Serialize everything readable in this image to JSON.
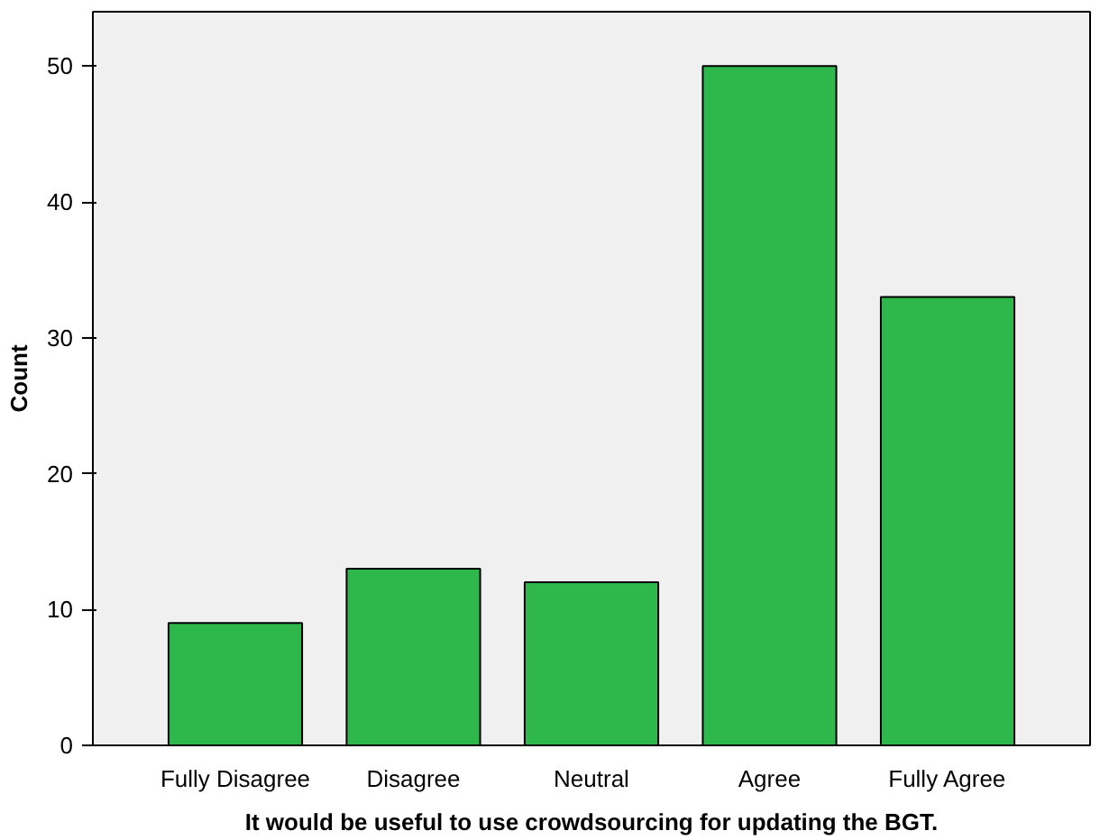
{
  "chart_data": {
    "type": "bar",
    "xlabel": "It would be useful to use crowdsourcing for updating the BGT.",
    "ylabel": "Count",
    "categories": [
      "Fully Disagree",
      "Disagree",
      "Neutral",
      "Agree",
      "Fully Agree"
    ],
    "series": [
      {
        "color": "#2eb84b",
        "values": [
          9,
          13,
          12,
          50,
          33
        ]
      }
    ],
    "ylim": [
      0,
      54
    ],
    "yticks": [
      0,
      10,
      20,
      30,
      40,
      50
    ],
    "grid": false
  }
}
